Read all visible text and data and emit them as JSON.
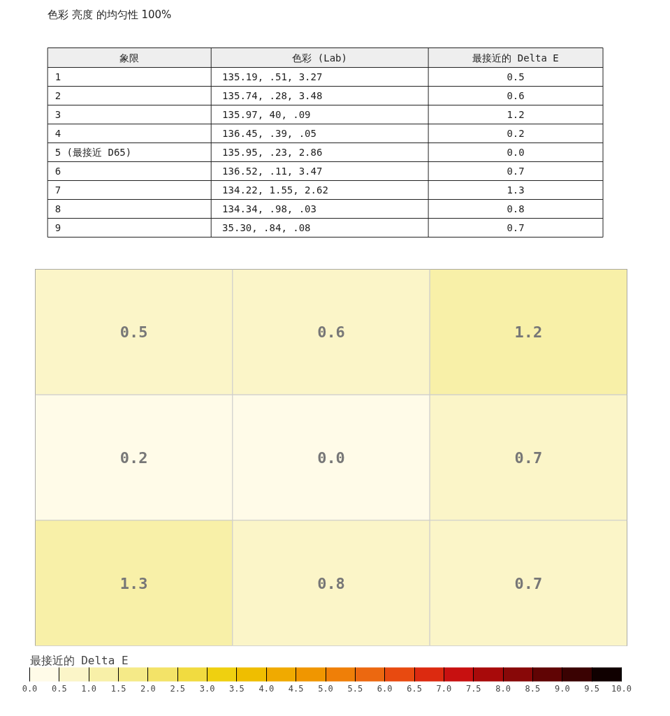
{
  "chart_data": [
    {
      "type": "other",
      "title": "色彩 亮度 的均匀性 100%",
      "annotations": [
        "象限",
        "色彩 (Lab)",
        "最接近的 Delta E",
        "1",
        "135.19,   .51,   3.27",
        "0.5",
        "2",
        "135.74,   .28,   3.48",
        "0.6",
        "3",
        "135.97,    40,    .09",
        "1.2",
        "4",
        "136.45,   .39,    .05",
        "0.2",
        "5 (最接近 D65)",
        "135.95,   .23,   2.86",
        "0.0",
        "6",
        "136.52,   .11,   3.47",
        "0.7",
        "7",
        "134.22,  1.55,   2.62",
        "1.3",
        "8",
        "134.34,   .98,    .03",
        "0.8",
        "9",
        " 35.30,   .84,    .08",
        "0.7"
      ]
    },
    {
      "type": "heatmap",
      "categories": [
        null,
        null,
        null
      ],
      "y_categories": [
        null,
        null,
        null
      ],
      "cells": [
        [
          0.5,
          0.6,
          1.2
        ],
        [
          0.2,
          0.0,
          0.7
        ],
        [
          1.3,
          0.8,
          0.7
        ]
      ],
      "cell_labels": [
        [
          "0.5",
          "0.6",
          "1.2"
        ],
        [
          "0.2",
          "0.0",
          "0.7"
        ],
        [
          "1.3",
          "0.8",
          "0.7"
        ]
      ],
      "clabel": "最接近的 Delta E",
      "clim": [
        0,
        10
      ],
      "cticks": [
        {
          "value": 0,
          "label": "0.0"
        },
        0.5,
        {
          "value": 1,
          "label": "1.0"
        },
        1.5,
        {
          "value": 2,
          "label": "2.0"
        },
        2.5,
        {
          "value": 3,
          "label": "3.0"
        },
        3.5,
        {
          "value": 4,
          "label": "4.0"
        },
        4.5,
        {
          "value": 5,
          "label": "5.0"
        },
        5.5,
        {
          "value": 6,
          "label": "6.0"
        },
        6.5,
        {
          "value": 7,
          "label": "7.0"
        },
        7.5,
        {
          "value": 8,
          "label": "8.0"
        },
        8.5,
        {
          "value": 9,
          "label": "9.0"
        },
        9.5,
        {
          "value": 10,
          "label": "10.0"
        }
      ],
      "tick_labels": false,
      "grid": false
    }
  ]
}
